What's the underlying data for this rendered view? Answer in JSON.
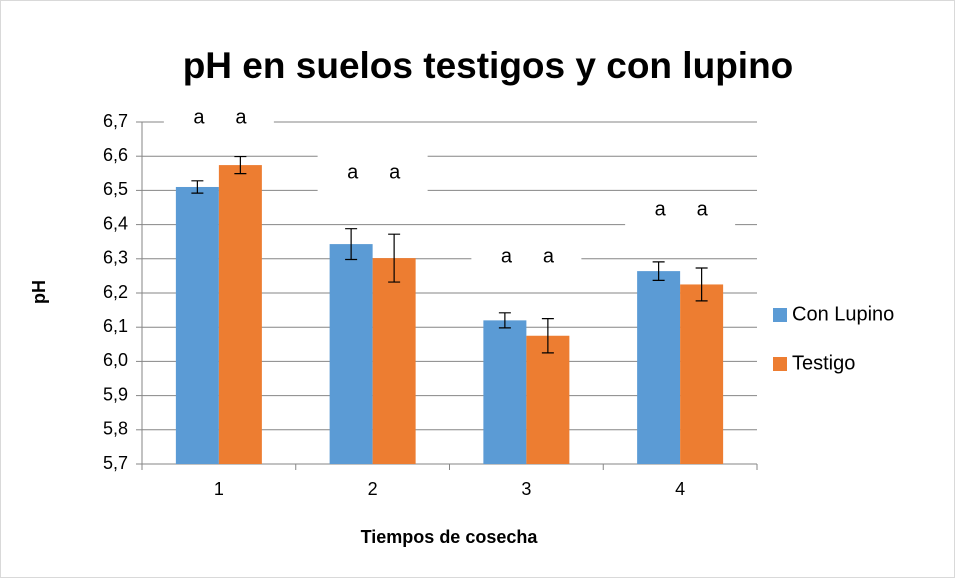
{
  "chart_data": {
    "type": "bar",
    "title": "pH en suelos testigos y con lupino",
    "x_label": "Tiempos de cosecha",
    "y_label": "pH",
    "categories": [
      "1",
      "2",
      "3",
      "4"
    ],
    "series": [
      {
        "name": "Con Lupino",
        "color": "#5b9bd5",
        "values": [
          6.51,
          6.343,
          6.12,
          6.264
        ],
        "errors": [
          0.018,
          0.045,
          0.022,
          0.027
        ]
      },
      {
        "name": "Testigo",
        "color": "#ed7d31",
        "values": [
          6.574,
          6.302,
          6.075,
          6.225
        ],
        "errors": [
          0.025,
          0.07,
          0.05,
          0.048
        ]
      }
    ],
    "annotations": [
      "a",
      "a",
      "a",
      "a",
      "a",
      "a",
      "a",
      "a"
    ],
    "ylim": [
      5.7,
      6.7
    ],
    "yticks": [
      {
        "value": 5.7,
        "label": "5,7"
      },
      {
        "value": 5.8,
        "label": "5,8"
      },
      {
        "value": 5.9,
        "label": "5,9"
      },
      {
        "value": 6.0,
        "label": "6,0"
      },
      {
        "value": 6.1,
        "label": "6,1"
      },
      {
        "value": 6.2,
        "label": "6,2"
      },
      {
        "value": 6.3,
        "label": "6,3"
      },
      {
        "value": 6.4,
        "label": "6,4"
      },
      {
        "value": 6.5,
        "label": "6,5"
      },
      {
        "value": 6.6,
        "label": "6,6"
      },
      {
        "value": 6.7,
        "label": "6,7"
      }
    ],
    "grid": true,
    "legend": "right"
  }
}
